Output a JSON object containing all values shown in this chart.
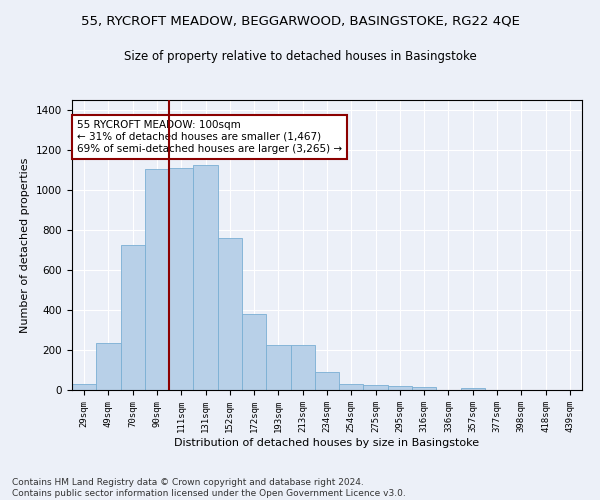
{
  "title_line1": "55, RYCROFT MEADOW, BEGGARWOOD, BASINGSTOKE, RG22 4QE",
  "title_line2": "Size of property relative to detached houses in Basingstoke",
  "xlabel": "Distribution of detached houses by size in Basingstoke",
  "ylabel": "Number of detached properties",
  "footnote": "Contains HM Land Registry data © Crown copyright and database right 2024.\nContains public sector information licensed under the Open Government Licence v3.0.",
  "bar_labels": [
    "29sqm",
    "49sqm",
    "70sqm",
    "90sqm",
    "111sqm",
    "131sqm",
    "152sqm",
    "172sqm",
    "193sqm",
    "213sqm",
    "234sqm",
    "254sqm",
    "275sqm",
    "295sqm",
    "316sqm",
    "336sqm",
    "357sqm",
    "377sqm",
    "398sqm",
    "418sqm",
    "439sqm"
  ],
  "bar_values": [
    30,
    235,
    725,
    1105,
    1110,
    1125,
    760,
    380,
    225,
    225,
    90,
    30,
    25,
    22,
    15,
    0,
    10,
    0,
    0,
    0,
    0
  ],
  "bar_color": "#b8d0e8",
  "bar_edgecolor": "#7aafd4",
  "vline_pos": 3.5,
  "vline_color": "#8b0000",
  "annotation_text": "55 RYCROFT MEADOW: 100sqm\n← 31% of detached houses are smaller (1,467)\n69% of semi-detached houses are larger (3,265) →",
  "annotation_box_edgecolor": "#8b0000",
  "annotation_box_facecolor": "#ffffff",
  "ylim": [
    0,
    1450
  ],
  "yticks": [
    0,
    200,
    400,
    600,
    800,
    1000,
    1200,
    1400
  ],
  "background_color": "#ecf0f8",
  "plot_background": "#ecf0f8",
  "grid_color": "#ffffff",
  "title1_fontsize": 9.5,
  "title2_fontsize": 8.5,
  "xlabel_fontsize": 8,
  "ylabel_fontsize": 8,
  "annotation_fontsize": 7.5,
  "footnote_fontsize": 6.5
}
